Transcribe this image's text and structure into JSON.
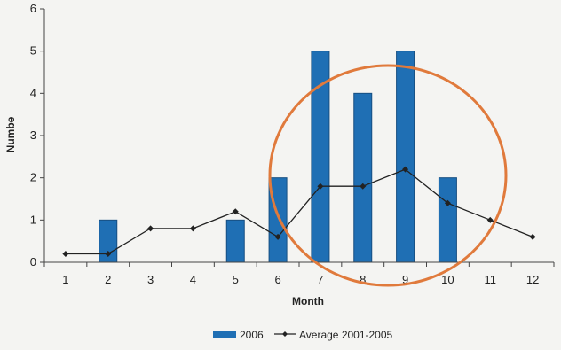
{
  "chart_data": {
    "type": "bar",
    "xlabel": "Month",
    "ylabel": "Numbe",
    "categories": [
      "1",
      "2",
      "3",
      "4",
      "5",
      "6",
      "7",
      "8",
      "9",
      "10",
      "11",
      "12"
    ],
    "ylim": [
      0,
      6
    ],
    "yticks": [
      "0",
      "1",
      "2",
      "3",
      "4",
      "5",
      "6"
    ],
    "grid": false,
    "legend_position": "bottom",
    "series": [
      {
        "name": "2006",
        "kind": "bar",
        "color": "#1f6fb4",
        "values": [
          null,
          1,
          null,
          null,
          1,
          2,
          5,
          4,
          5,
          2,
          null,
          null
        ]
      },
      {
        "name": "Average 2001-2005",
        "kind": "line",
        "marker": "diamond",
        "color": "#222222",
        "values": [
          0.2,
          0.2,
          0.8,
          0.8,
          1.2,
          0.6,
          1.8,
          1.8,
          2.2,
          1.4,
          1.0,
          0.6
        ]
      }
    ],
    "annotation": {
      "shape": "circle",
      "color": "#e07a3c"
    }
  }
}
